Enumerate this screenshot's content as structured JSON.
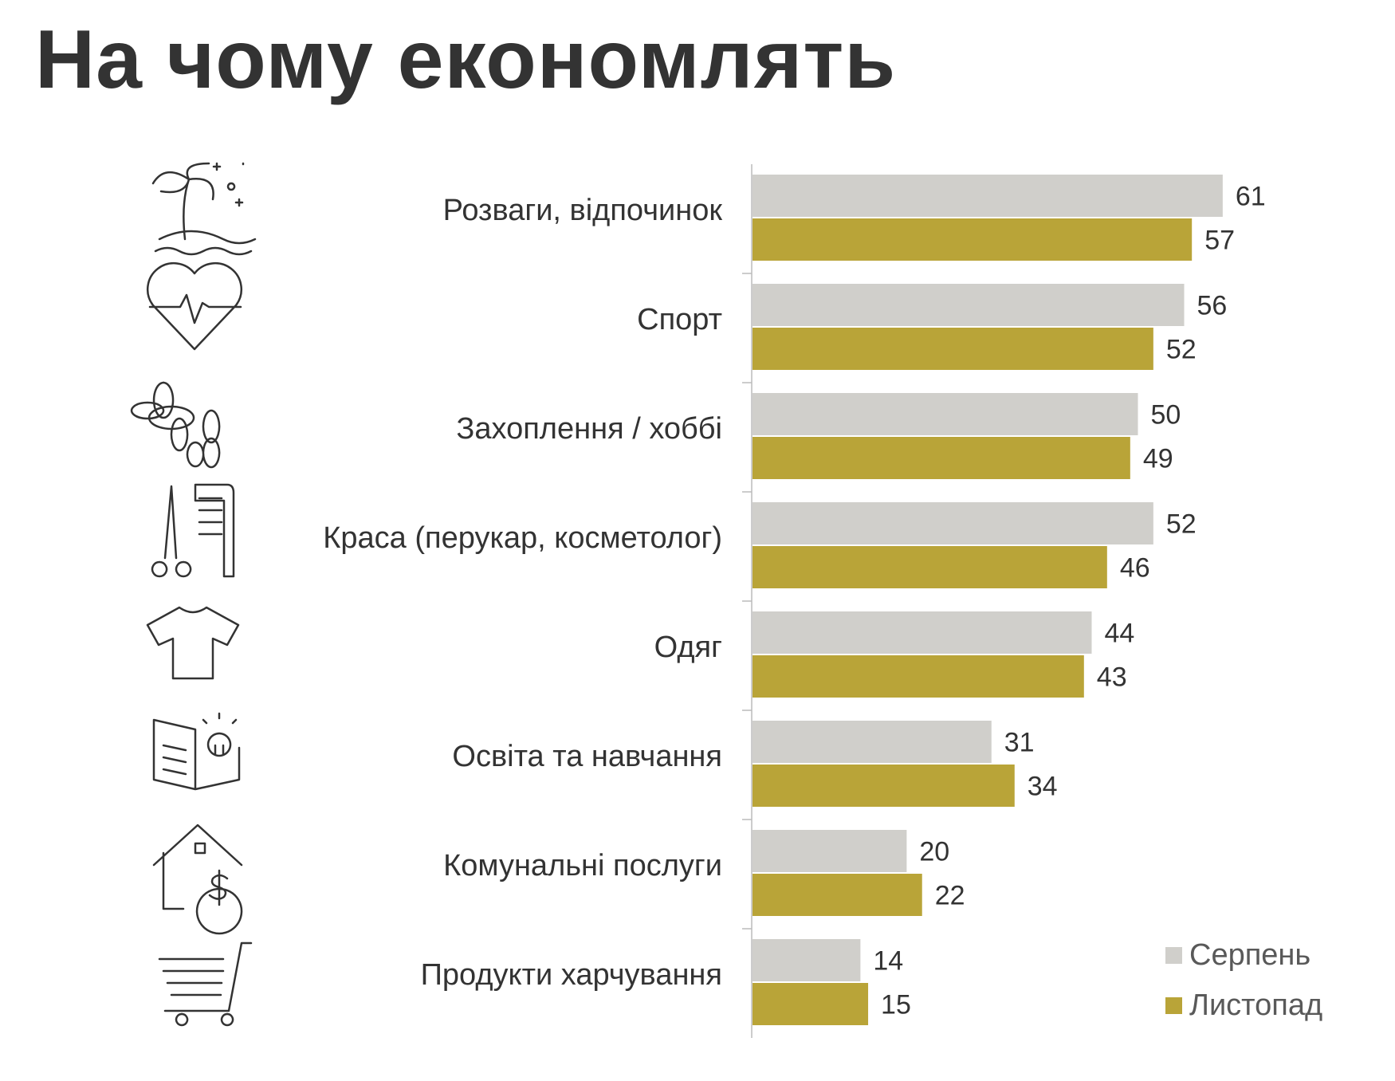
{
  "title": "На чому економлять",
  "chart_data": {
    "type": "bar",
    "orientation": "horizontal",
    "title": "На чому економлять",
    "categories": [
      "Розваги, відпочинок",
      "Спорт",
      "Захоплення / хоббі",
      "Краса (перукар, косметолог)",
      "Одяг",
      "Освіта та навчання",
      "Комунальні послуги",
      "Продукти харчування"
    ],
    "category_icons": [
      "palm-island-icon",
      "heart-pulse-icon",
      "balloon-dog-icon",
      "scissors-comb-icon",
      "tshirt-icon",
      "book-lightbulb-icon",
      "house-dollar-icon",
      "shopping-cart-icon"
    ],
    "series": [
      {
        "name": "Серпень",
        "color": "#d0cfcb",
        "values": [
          61,
          56,
          50,
          52,
          44,
          31,
          20,
          14
        ]
      },
      {
        "name": "Листопад",
        "color": "#b9a438",
        "values": [
          57,
          52,
          49,
          46,
          43,
          34,
          22,
          15
        ]
      }
    ],
    "xlabel": "",
    "ylabel": "",
    "xlim": [
      0,
      65
    ],
    "grid": false,
    "legend_position": "bottom-right",
    "data_labels": true
  }
}
